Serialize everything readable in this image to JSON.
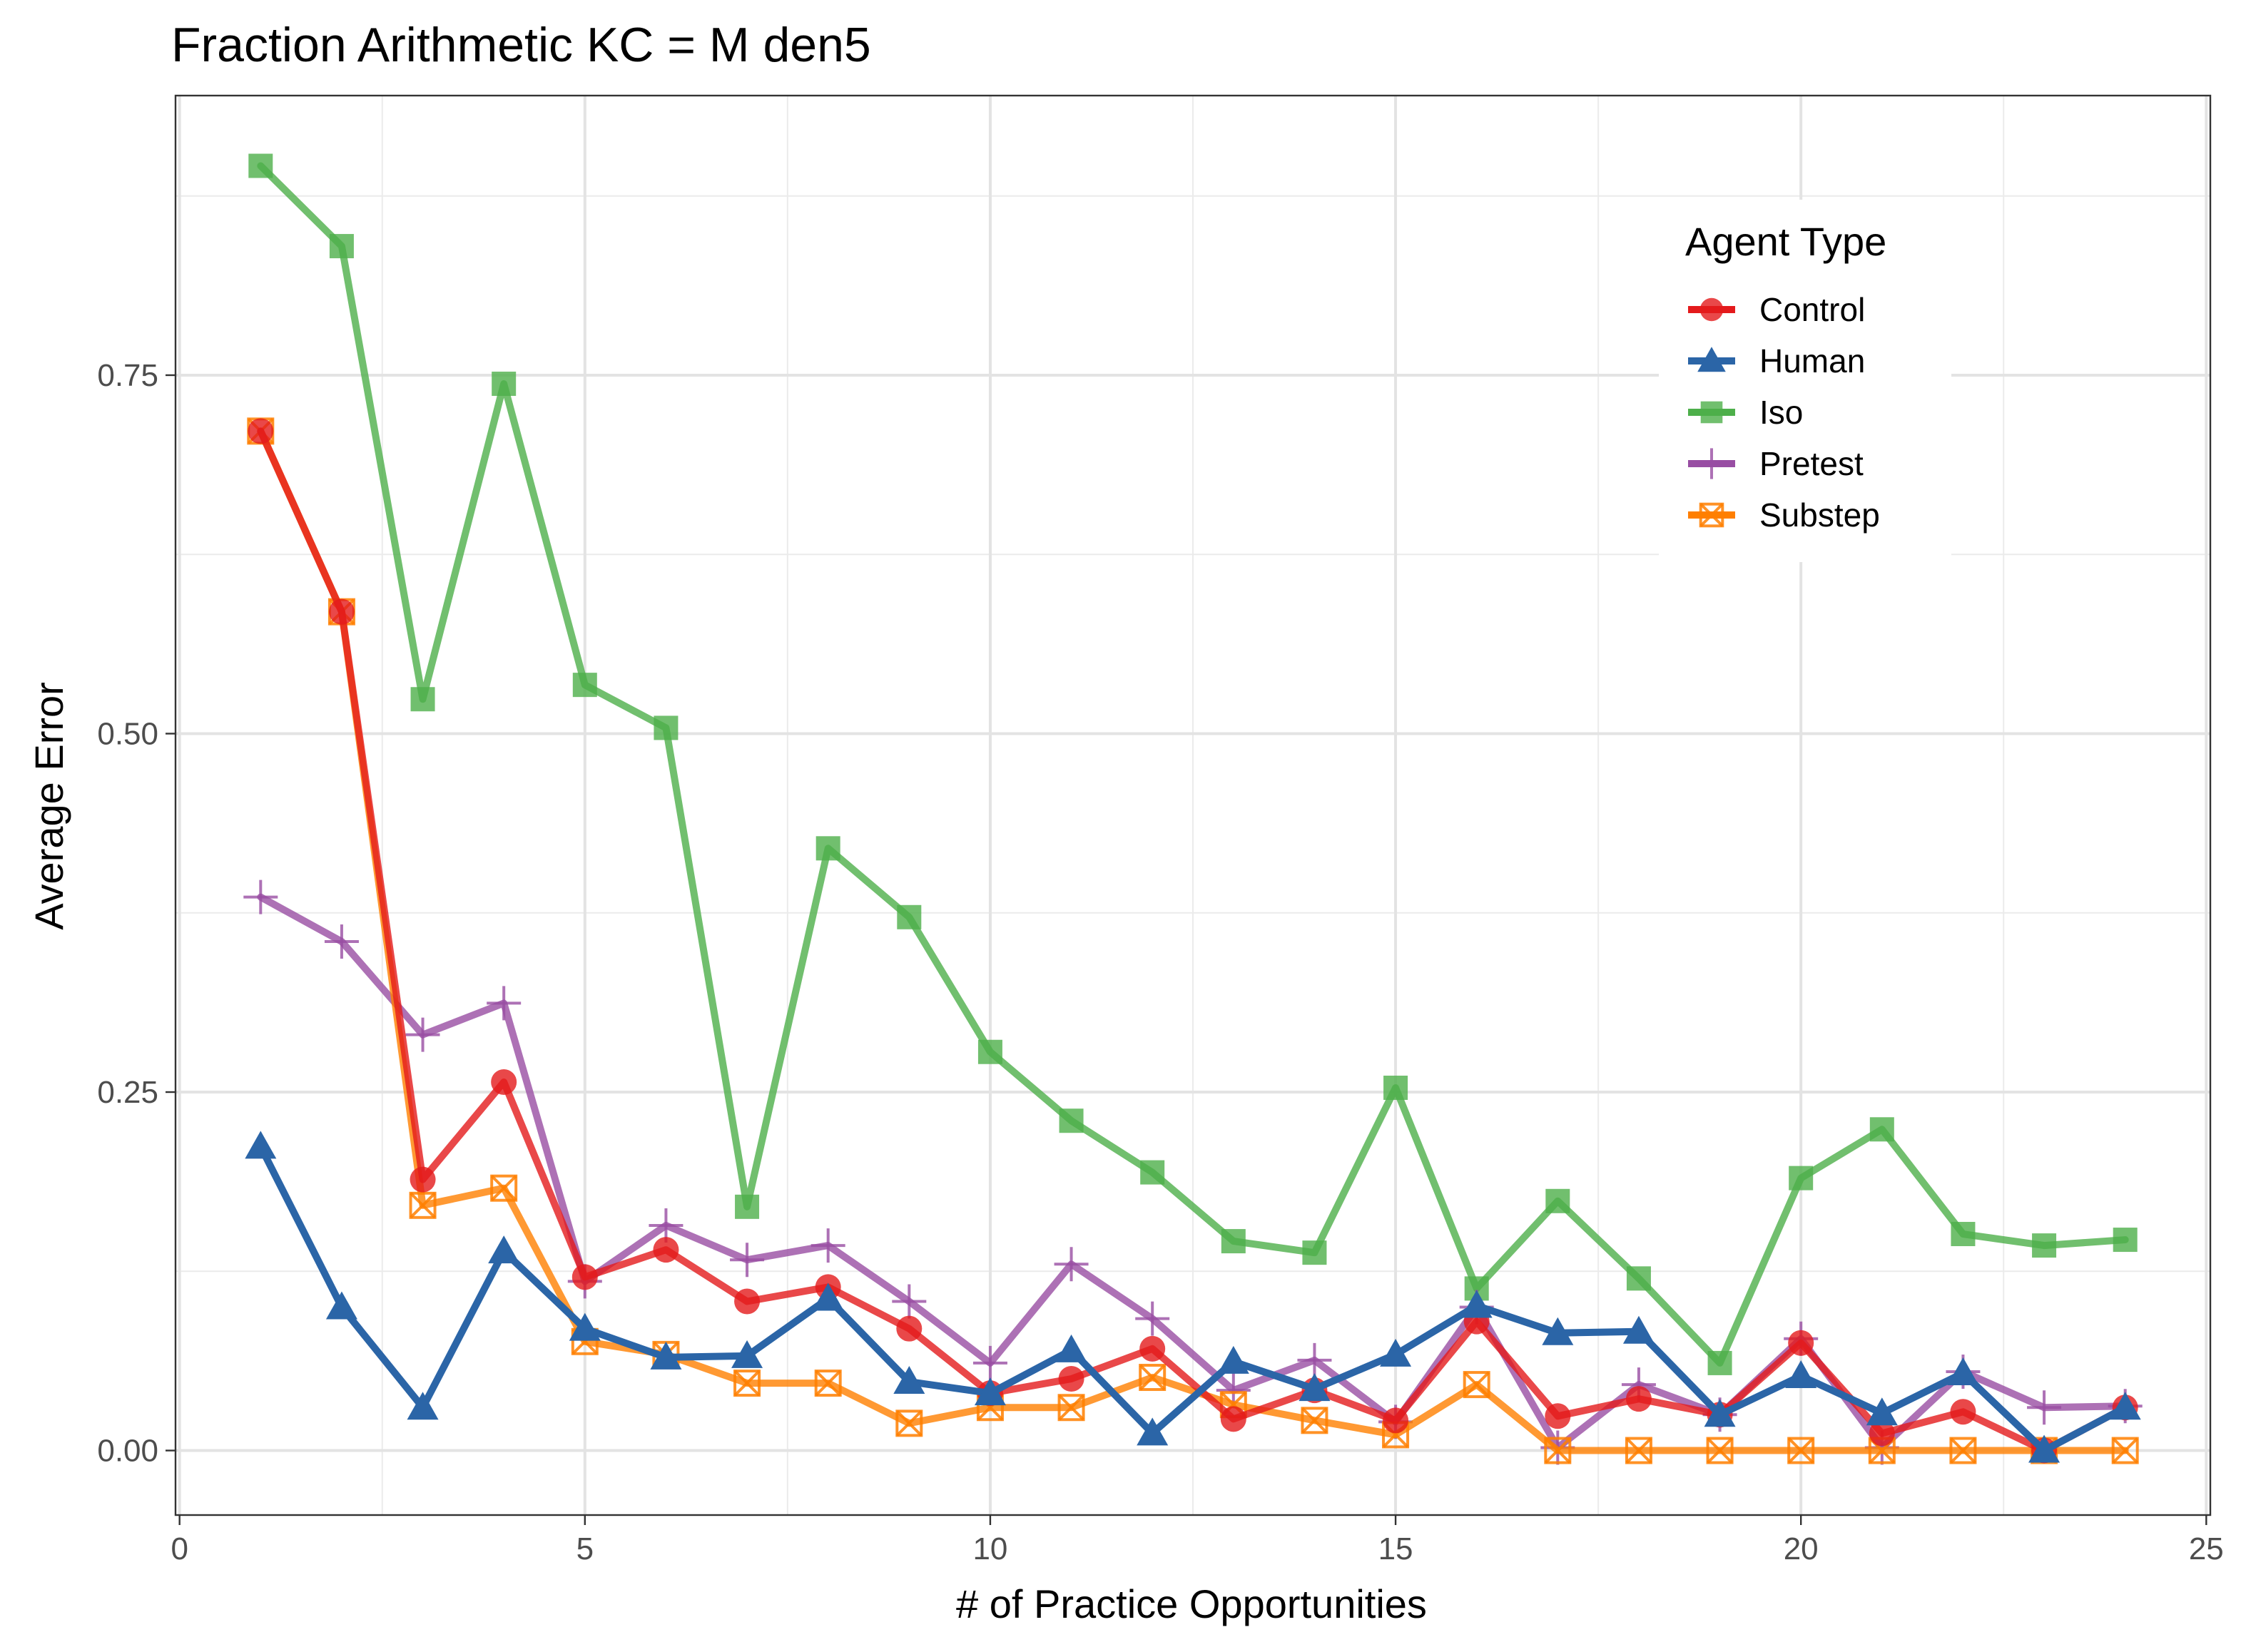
{
  "chart_data": {
    "type": "line",
    "title": "Fraction Arithmetic KC =  M den5",
    "xlabel": "# of Practice Opportunities",
    "ylabel": "Average Error",
    "xlim": [
      -0.05,
      25.05
    ],
    "ylim": [
      -0.045,
      0.945
    ],
    "xticks": [
      0,
      5,
      10,
      15,
      20,
      25
    ],
    "xtick_labels": [
      "0",
      "5",
      "10",
      "15",
      "20",
      "25"
    ],
    "xminor": [
      2.5,
      7.5,
      12.5,
      17.5,
      22.5
    ],
    "yticks": [
      0,
      0.25,
      0.5,
      0.75
    ],
    "ytick_labels": [
      "0.00",
      "0.25",
      "0.50",
      "0.75"
    ],
    "yminor": [
      0.125,
      0.375,
      0.625,
      0.875
    ],
    "grid": true,
    "legend": {
      "title": "Agent Type",
      "placement": "top-right"
    },
    "x": [
      1,
      2,
      3,
      4,
      5,
      6,
      7,
      8,
      9,
      10,
      11,
      12,
      13,
      14,
      15,
      16,
      17,
      18,
      19,
      20,
      21,
      22,
      23,
      24
    ],
    "series": [
      {
        "name": "Iso",
        "color": "#4DAF4A",
        "marker": "square",
        "values": [
          0.896,
          0.84,
          0.524,
          0.744,
          0.534,
          0.504,
          0.17,
          0.42,
          0.372,
          0.278,
          0.23,
          0.194,
          0.146,
          0.138,
          0.253,
          0.113,
          0.174,
          0.12,
          0.061,
          0.19,
          0.224,
          0.151,
          0.143,
          0.147
        ]
      },
      {
        "name": "Pretest",
        "color": "#984EA3",
        "marker": "plus",
        "values": [
          0.386,
          0.355,
          0.29,
          0.312,
          0.118,
          0.157,
          0.133,
          0.143,
          0.104,
          0.061,
          0.13,
          0.092,
          0.042,
          0.063,
          0.02,
          0.1,
          0.002,
          0.046,
          0.025,
          0.078,
          0.002,
          0.055,
          0.03,
          0.031
        ]
      },
      {
        "name": "Substep",
        "color": "#FF7F00",
        "marker": "square-x",
        "values": [
          0.711,
          0.585,
          0.171,
          0.183,
          0.076,
          0.067,
          0.047,
          0.047,
          0.019,
          0.03,
          0.03,
          0.051,
          0.032,
          0.021,
          0.011,
          0.046,
          0.0,
          0.0,
          0.0,
          0.0,
          0.0,
          0.0,
          0.0,
          0.0
        ]
      },
      {
        "name": "Control",
        "color": "#E41A1C",
        "marker": "circle",
        "values": [
          0.711,
          0.585,
          0.189,
          0.257,
          0.121,
          0.14,
          0.104,
          0.114,
          0.085,
          0.04,
          0.05,
          0.071,
          0.022,
          0.042,
          0.021,
          0.09,
          0.024,
          0.036,
          0.025,
          0.075,
          0.012,
          0.027,
          0.0,
          0.03
        ]
      },
      {
        "name": "Human",
        "color": "#2B65A7",
        "marker": "triangle",
        "values": [
          0.212,
          0.1,
          0.03,
          0.139,
          0.085,
          0.065,
          0.066,
          0.106,
          0.048,
          0.04,
          0.07,
          0.012,
          0.062,
          0.043,
          0.067,
          0.101,
          0.082,
          0.083,
          0.025,
          0.052,
          0.026,
          0.054,
          0.0,
          0.03
        ]
      }
    ],
    "legend_order": [
      "Control",
      "Human",
      "Iso",
      "Pretest",
      "Substep"
    ]
  }
}
